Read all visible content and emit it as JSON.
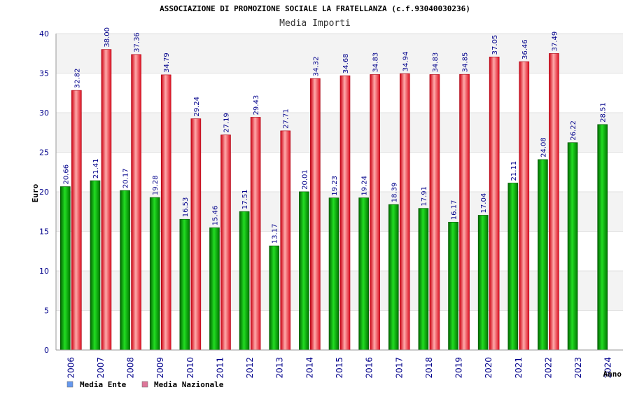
{
  "chart_data": {
    "type": "bar",
    "title": "ASSOCIAZIONE DI PROMOZIONE SOCIALE LA FRATELLANZA (c.f.93040030236)",
    "subtitle": "Media Importi",
    "ylabel": "Euro",
    "xlabel": "Anno",
    "ylim": [
      0,
      40
    ],
    "yticks": [
      0,
      5,
      10,
      15,
      20,
      25,
      30,
      35,
      40
    ],
    "grid": true,
    "legend_position": "bottom-left",
    "categories": [
      "2006",
      "2007",
      "2008",
      "2009",
      "2010",
      "2011",
      "2012",
      "2013",
      "2014",
      "2015",
      "2016",
      "2017",
      "2018",
      "2019",
      "2020",
      "2021",
      "2022",
      "2023",
      "2024"
    ],
    "series": [
      {
        "name": "Media Ente",
        "color": "#00bb00",
        "legend_color": "#6699ee",
        "values": [
          20.66,
          21.41,
          20.17,
          19.28,
          16.53,
          15.46,
          17.51,
          13.17,
          20.01,
          19.23,
          19.24,
          18.39,
          17.91,
          16.17,
          17.04,
          21.11,
          24.08,
          26.22,
          28.51
        ]
      },
      {
        "name": "Media Nazionale",
        "color": "#ee2233",
        "legend_color": "#dd7799",
        "values": [
          32.82,
          38.0,
          37.36,
          34.79,
          29.24,
          27.19,
          29.43,
          27.71,
          34.32,
          34.68,
          34.83,
          34.94,
          34.83,
          34.85,
          37.05,
          36.46,
          37.49,
          null,
          null
        ]
      }
    ]
  }
}
